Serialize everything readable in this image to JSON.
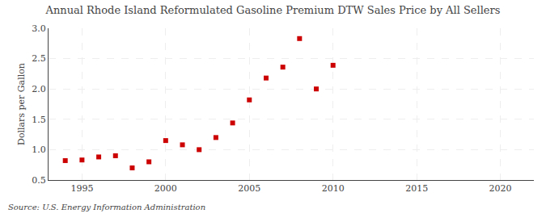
{
  "chart_data": {
    "type": "scatter",
    "title": "Annual Rhode Island Reformulated Gasoline Premium DTW Sales Price by All Sellers",
    "ylabel": "Dollars per Gallon",
    "source": "Source: U.S. Energy Information Administration",
    "x": [
      1994,
      1995,
      1996,
      1997,
      1998,
      1999,
      2000,
      2001,
      2002,
      2003,
      2004,
      2005,
      2006,
      2007,
      2008,
      2009,
      2010
    ],
    "values": [
      0.82,
      0.83,
      0.88,
      0.9,
      0.7,
      0.8,
      1.15,
      1.08,
      1.0,
      1.2,
      1.44,
      1.82,
      2.18,
      2.36,
      2.83,
      2.0,
      2.39
    ],
    "color": "#cc0000",
    "marker": "square",
    "xlim": [
      1993,
      2022
    ],
    "ylim": [
      0.5,
      3.0
    ],
    "xticks": [
      1995,
      2000,
      2005,
      2010,
      2015,
      2020
    ],
    "yticks": [
      0.5,
      {
        "value": 1.0,
        "label": "1.0"
      },
      1.5,
      {
        "value": 2.0,
        "label": "2.0"
      },
      2.5,
      {
        "value": 3.0,
        "label": "3.0"
      }
    ],
    "grid": true
  }
}
